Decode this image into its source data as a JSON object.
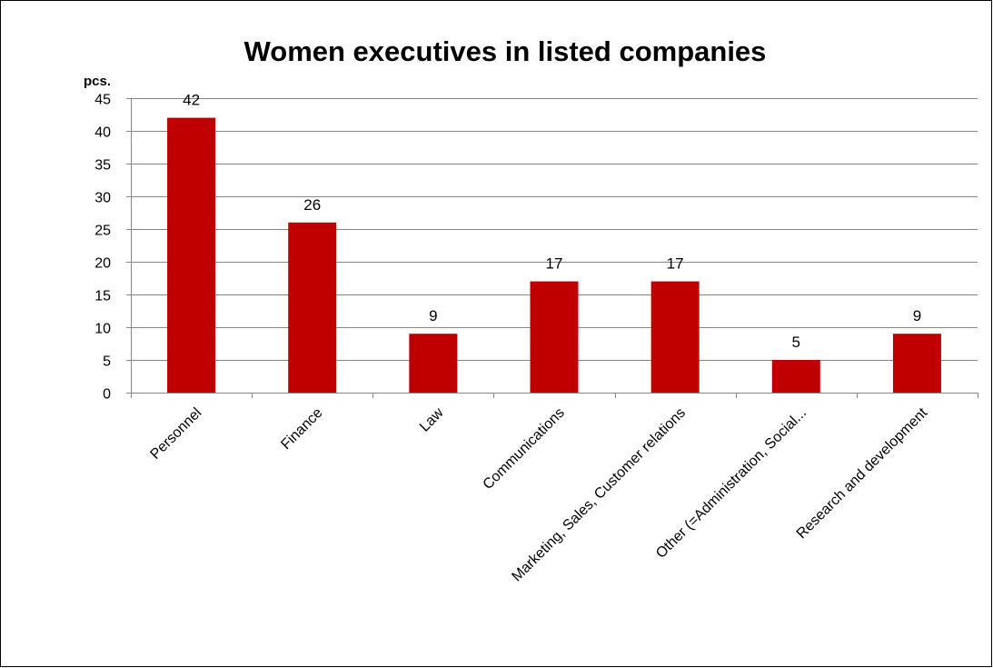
{
  "chart_data": {
    "type": "bar",
    "title": "Women executives in listed companies",
    "ylabel": "pcs.",
    "xlabel": "",
    "categories": [
      "Personnel",
      "Finance",
      "Law",
      "Communications",
      "Marketing, Sales, Customer relations",
      "Other (=Administration, Social...",
      "Research and development"
    ],
    "values": [
      42,
      26,
      9,
      17,
      17,
      5,
      9
    ],
    "data_labels": [
      "42",
      "26",
      "9",
      "17",
      "17",
      "5",
      "9"
    ],
    "ylim": [
      0,
      45
    ],
    "yticks": [
      "0",
      "5",
      "10",
      "15",
      "20",
      "25",
      "30",
      "35",
      "40",
      "45"
    ],
    "grid": true,
    "legend": "none",
    "bar_color": "#c00000"
  }
}
